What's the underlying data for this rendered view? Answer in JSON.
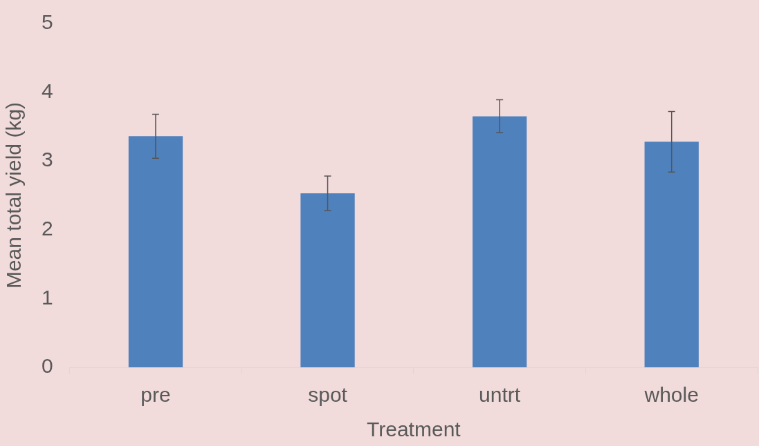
{
  "chart_data": {
    "type": "bar",
    "xlabel": "Treatment",
    "ylabel": "Mean total yield (kg)",
    "categories": [
      "pre",
      "spot",
      "untrt",
      "whole"
    ],
    "values": [
      3.36,
      2.53,
      3.65,
      3.28
    ],
    "errors": [
      0.32,
      0.25,
      0.24,
      0.44
    ],
    "color": "#4f81bd",
    "ylim": [
      0,
      5
    ],
    "yticks": [
      0,
      1,
      2,
      3,
      4,
      5
    ]
  }
}
